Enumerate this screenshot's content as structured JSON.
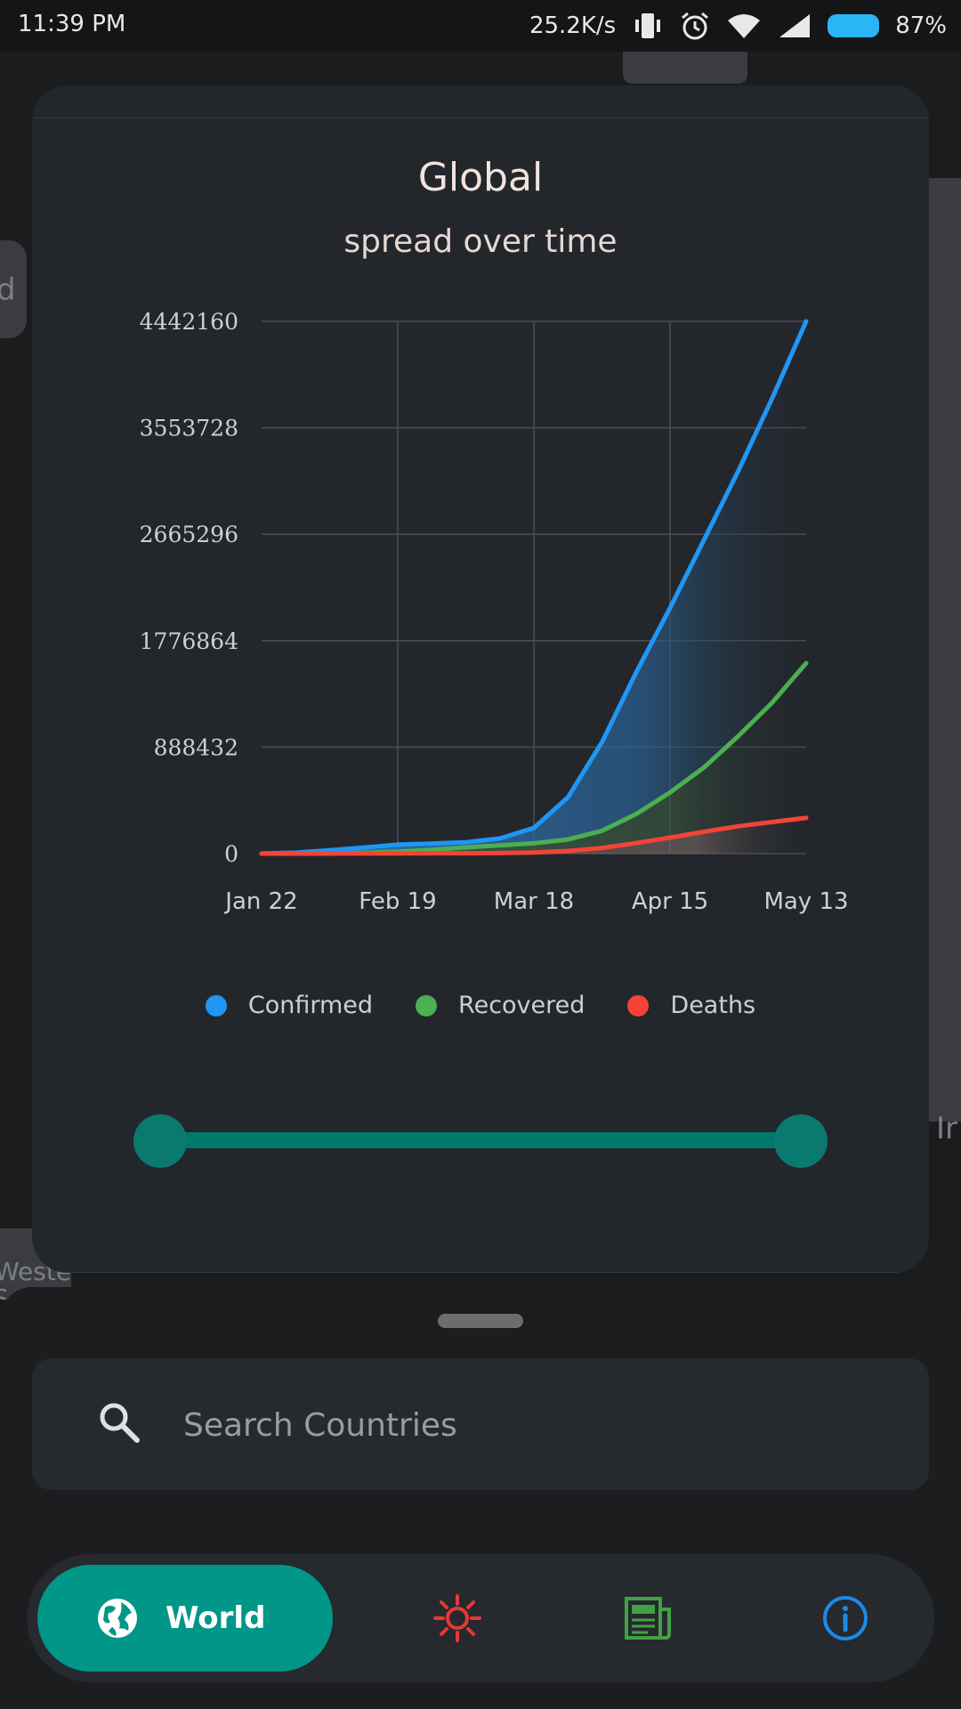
{
  "status_bar": {
    "time": "11:39 PM",
    "net_speed": "25.2K/s",
    "battery": "87%"
  },
  "map_labels": [
    "d",
    "Weste",
    "S",
    "Ir"
  ],
  "card": {
    "title": "Global",
    "subtitle": "spread over time"
  },
  "chart_data": {
    "type": "area",
    "title": "Global",
    "subtitle": "spread over time",
    "x_ticks": [
      "Jan 22",
      "Feb 19",
      "Mar 18",
      "Apr 15",
      "May 13"
    ],
    "y_ticks": [
      0,
      888432,
      1776864,
      2665296,
      3553728,
      4442160
    ],
    "ylim": [
      0,
      4442160
    ],
    "grid": true,
    "x": [
      "Jan 22",
      "Jan 29",
      "Feb 5",
      "Feb 12",
      "Feb 19",
      "Feb 26",
      "Mar 4",
      "Mar 11",
      "Mar 18",
      "Mar 25",
      "Apr 1",
      "Apr 8",
      "Apr 15",
      "Apr 22",
      "Apr 29",
      "May 6",
      "May 13"
    ],
    "series": [
      {
        "name": "Confirmed",
        "color": "#2196f3",
        "values": [
          555,
          7800,
          28000,
          50000,
          75000,
          83000,
          95000,
          126000,
          215000,
          470000,
          930000,
          1510000,
          2050000,
          2620000,
          3190000,
          3800000,
          4442160
        ]
      },
      {
        "name": "Recovered",
        "color": "#4caf50",
        "values": [
          28,
          130,
          1100,
          6500,
          16000,
          32000,
          52000,
          68000,
          86000,
          118000,
          190000,
          330000,
          510000,
          720000,
          980000,
          1260000,
          1590000
        ]
      },
      {
        "name": "Deaths",
        "color": "#f44336",
        "values": [
          17,
          170,
          560,
          1100,
          2000,
          2800,
          3300,
          4300,
          8800,
          22000,
          47000,
          88000,
          134000,
          183000,
          228000,
          264000,
          298000
        ]
      }
    ],
    "legend": "bottom-center"
  },
  "legend": [
    {
      "label": "Confirmed",
      "color": "#2196f3"
    },
    {
      "label": "Recovered",
      "color": "#4caf50"
    },
    {
      "label": "Deaths",
      "color": "#f44336"
    }
  ],
  "range_slider": {
    "start": 0,
    "end": 1
  },
  "search": {
    "placeholder": "Search Countries",
    "value": ""
  },
  "nav": {
    "world_label": "World",
    "items": [
      {
        "name": "world",
        "icon": "globe-icon",
        "active": true,
        "color": "#ffffff"
      },
      {
        "name": "virus",
        "icon": "virus-icon",
        "active": false,
        "color": "#e53935"
      },
      {
        "name": "news",
        "icon": "newspaper-icon",
        "active": false,
        "color": "#43a047"
      },
      {
        "name": "info",
        "icon": "info-icon",
        "active": false,
        "color": "#1e88e5"
      }
    ]
  }
}
